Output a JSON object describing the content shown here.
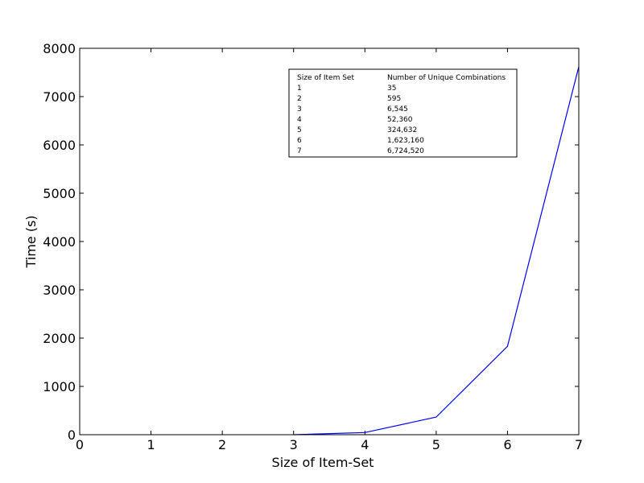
{
  "chart_data": {
    "type": "line",
    "xlabel": "Size of Item-Set",
    "ylabel": "Time (s)",
    "xlim": [
      0,
      7
    ],
    "ylim": [
      0,
      8000
    ],
    "x_ticks": [
      "0",
      "1",
      "2",
      "3",
      "4",
      "5",
      "6",
      "7"
    ],
    "y_ticks": [
      "0",
      "1000",
      "2000",
      "3000",
      "4000",
      "5000",
      "6000",
      "7000",
      "8000"
    ],
    "grid": false,
    "series": [
      {
        "color": "#0000ff",
        "points": [
          [
            3,
            0
          ],
          [
            4,
            45
          ],
          [
            5,
            365
          ],
          [
            6,
            1830
          ],
          [
            7,
            7620
          ]
        ]
      }
    ],
    "table": {
      "headers": [
        "Size of Item Set",
        "Number of Unique Combinations"
      ],
      "rows": [
        [
          "1",
          "35"
        ],
        [
          "2",
          "595"
        ],
        [
          "3",
          "6,545"
        ],
        [
          "4",
          "52,360"
        ],
        [
          "5",
          "324,632"
        ],
        [
          "6",
          "1,623,160"
        ],
        [
          "7",
          "6,724,520"
        ]
      ]
    }
  }
}
